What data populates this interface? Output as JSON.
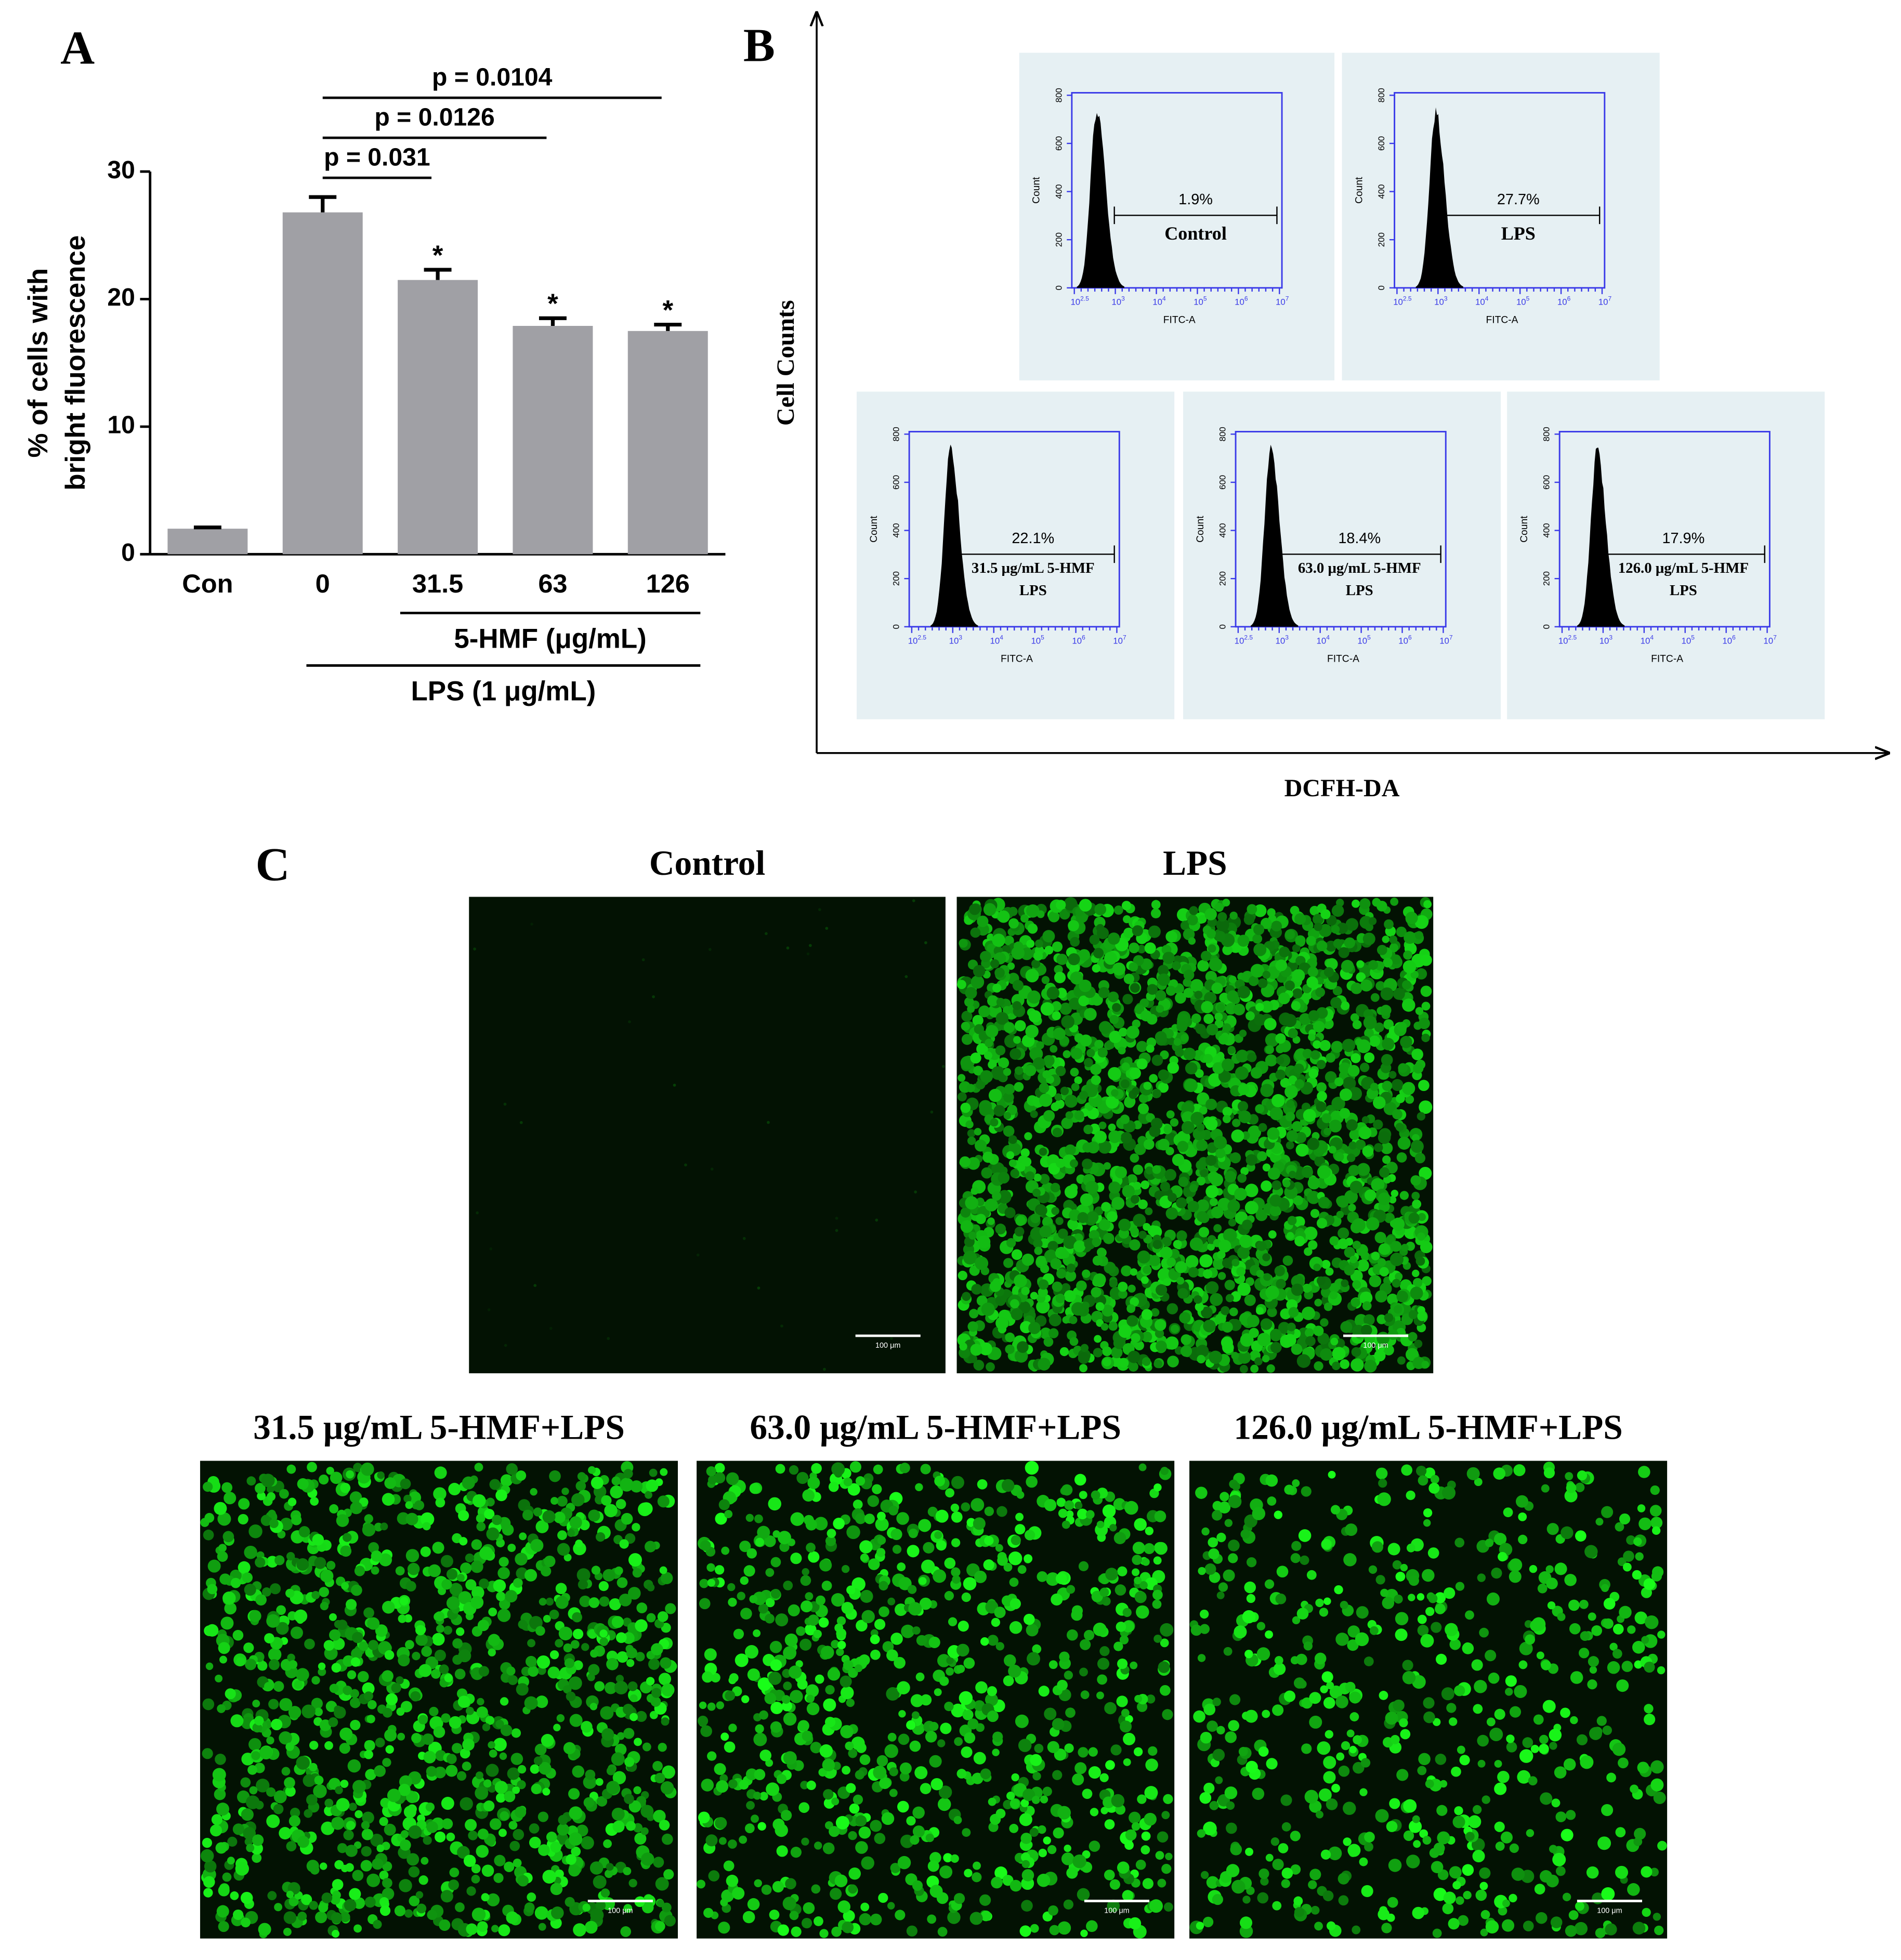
{
  "chart_data": {
    "type": "bar",
    "panel_label": "A",
    "ylabel": [
      "% of cells with",
      "bright fluorescence"
    ],
    "categories": [
      "Con",
      "0",
      "31.5",
      "63",
      "126"
    ],
    "values": [
      2.0,
      26.8,
      21.5,
      17.9,
      17.5
    ],
    "errors": [
      0.1,
      1.2,
      0.8,
      0.6,
      0.5
    ],
    "significance": [
      null,
      null,
      "*",
      "*",
      "*"
    ],
    "color": "#a0a0a5",
    "ylim": [
      0,
      30
    ],
    "yticks": [
      0,
      10,
      20,
      30
    ],
    "grid": false,
    "comparisons": [
      {
        "label": "p = 0.031",
        "categories": [
          "0",
          "31.5"
        ]
      },
      {
        "label": "p = 0.0126",
        "categories": [
          "0",
          "63"
        ]
      },
      {
        "label": "p = 0.0104",
        "categories": [
          "0",
          "126"
        ]
      }
    ],
    "groups": [
      {
        "label": "5-HMF (μg/mL)",
        "categories": [
          "31.5",
          "63",
          "126"
        ]
      },
      {
        "label": "LPS (1 μg/mL)",
        "categories": [
          "0",
          "31.5",
          "63",
          "126"
        ]
      }
    ]
  },
  "panel_b": {
    "label": "B",
    "y_label": "Cell Counts",
    "x_label": "DCFH-DA",
    "plot_axes": {
      "y_label": "Count",
      "x_label": "FITC-A",
      "ylim": [
        0,
        800
      ],
      "yticks": [
        0,
        200,
        400,
        600,
        800
      ],
      "xticks": [
        {
          "base": "10",
          "exponent": "2.5"
        },
        {
          "base": "10",
          "exponent": "3"
        },
        {
          "base": "10",
          "exponent": "4"
        },
        {
          "base": "10",
          "exponent": "5"
        },
        {
          "base": "10",
          "exponent": "6"
        },
        {
          "base": "10",
          "exponent": "7"
        }
      ]
    },
    "plots": [
      {
        "percent": "1.9%",
        "sample": [
          "Control"
        ]
      },
      {
        "percent": "27.7%",
        "sample": [
          "LPS"
        ]
      },
      {
        "percent": "22.1%",
        "sample": [
          "31.5 μg/mL 5-HMF",
          "LPS"
        ]
      },
      {
        "percent": "18.4%",
        "sample": [
          "63.0 μg/mL 5-HMF",
          "LPS"
        ]
      },
      {
        "percent": "17.9%",
        "sample": [
          "126.0 μg/mL 5-HMF",
          "LPS"
        ]
      }
    ]
  },
  "panel_c": {
    "label": "C",
    "images": [
      {
        "title": "Control",
        "scale_bar": "100 μm"
      },
      {
        "title": "LPS",
        "scale_bar": "100 μm"
      },
      {
        "title": "31.5 μg/mL 5-HMF+LPS",
        "scale_bar": "100 μm"
      },
      {
        "title": "63.0 μg/mL 5-HMF+LPS",
        "scale_bar": "100 μm"
      },
      {
        "title": "126.0 μg/mL 5-HMF+LPS",
        "scale_bar": "100 μm"
      }
    ]
  }
}
